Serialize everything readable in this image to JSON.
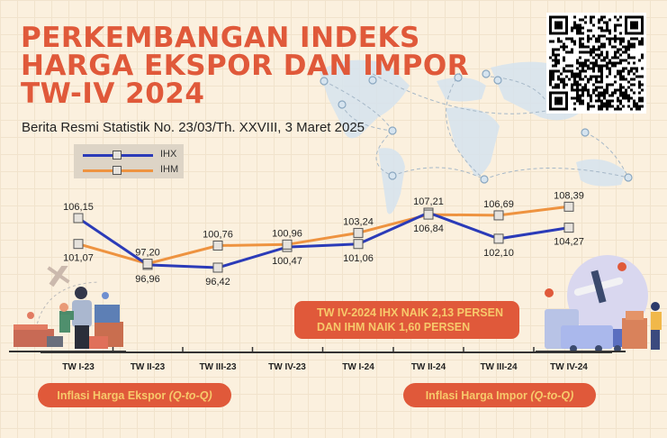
{
  "header": {
    "title_lines": [
      "PERKEMBANGAN INDEKS",
      "HARGA EKSPOR DAN IMPOR",
      "TW-IV 2024"
    ],
    "subtitle": "Berita Resmi Statistik No. 23/03/Th. XXVIII, 3 Maret 2025"
  },
  "colors": {
    "accent": "#e0593a",
    "pill_text": "#f7c96b",
    "ihx": "#2b3bb8",
    "ihm": "#ee9340",
    "background": "#fbf0de"
  },
  "callout": {
    "line1": "TW IV-2024 IHX NAIK 2,13 PERSEN",
    "line2": "DAN IHM NAIK 1,60 PERSEN"
  },
  "pills": {
    "export": {
      "text": "Inflasi Harga Ekspor ",
      "italic": "(Q-to-Q)"
    },
    "import": {
      "text": "Inflasi Harga Impor ",
      "italic": "(Q-to-Q)"
    }
  },
  "icons": {
    "qr": "qr-code-icon",
    "left_illustration": "export-worker-illustration",
    "right_illustration": "import-delivery-illustration"
  },
  "chart_data": {
    "type": "line",
    "title": "PERKEMBANGAN INDEKS HARGA EKSPOR DAN IMPOR TW-IV 2024",
    "categories": [
      "TW I-23",
      "TW II-23",
      "TW III-23",
      "TW IV-23",
      "TW I-24",
      "TW II-24",
      "TW III-24",
      "TW IV-24"
    ],
    "series": [
      {
        "name": "IHX",
        "values": [
          106.15,
          96.96,
          96.42,
          100.47,
          101.06,
          107.21,
          102.1,
          104.27
        ],
        "labels": [
          "106,15",
          "96,96",
          "96,42",
          "100,47",
          "101,06",
          "107,21",
          "102,10",
          "104,27"
        ],
        "label_pos": [
          "above",
          "below",
          "below",
          "below",
          "below",
          "above",
          "below",
          "below"
        ]
      },
      {
        "name": "IHM",
        "values": [
          101.07,
          97.2,
          100.76,
          100.96,
          103.24,
          106.84,
          106.69,
          108.39
        ],
        "labels": [
          "101,07",
          "97,20",
          "100,76",
          "100,96",
          "103,24",
          "106,84",
          "106,69",
          "108,39"
        ],
        "label_pos": [
          "below",
          "above",
          "above",
          "above",
          "above",
          "below",
          "above",
          "above"
        ]
      }
    ],
    "legend": "top-left",
    "xlabel": "",
    "ylabel": "",
    "grid": false
  }
}
